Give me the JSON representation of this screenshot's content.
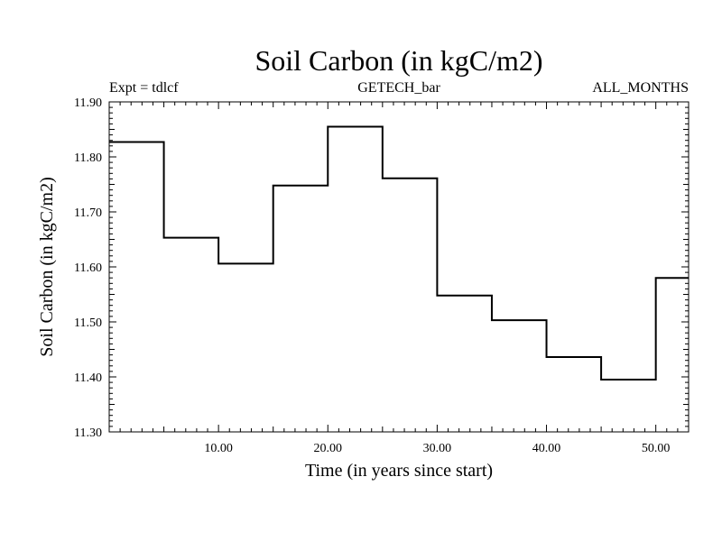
{
  "chart_data": {
    "type": "line",
    "title": "Soil Carbon (in kgC/m2)",
    "subtitle_left": "Expt = tdlcf",
    "subtitle_center": "GETECH_bar",
    "subtitle_right": "ALL_MONTHS",
    "xlabel": "Time (in years since start)",
    "ylabel": "Soil Carbon (in kgC/m2)",
    "xlim": [
      0,
      53
    ],
    "ylim": [
      11.3,
      11.9
    ],
    "x_ticks": [
      10,
      20,
      30,
      40,
      50
    ],
    "x_tick_labels": [
      "10.00",
      "20.00",
      "30.00",
      "40.00",
      "50.00"
    ],
    "y_ticks": [
      11.3,
      11.4,
      11.5,
      11.6,
      11.7,
      11.8,
      11.9
    ],
    "y_tick_labels": [
      "11.30",
      "11.40",
      "11.50",
      "11.60",
      "11.70",
      "11.80",
      "11.90"
    ],
    "step": "post",
    "series": [
      {
        "x": [
          0,
          5,
          10,
          15,
          20,
          25,
          30,
          35,
          40,
          45,
          50,
          53
        ],
        "y": [
          11.827,
          11.653,
          11.606,
          11.748,
          11.855,
          11.761,
          11.548,
          11.503,
          11.436,
          11.395,
          11.58,
          11.58
        ],
        "color": "#000000"
      }
    ],
    "grid": false
  }
}
